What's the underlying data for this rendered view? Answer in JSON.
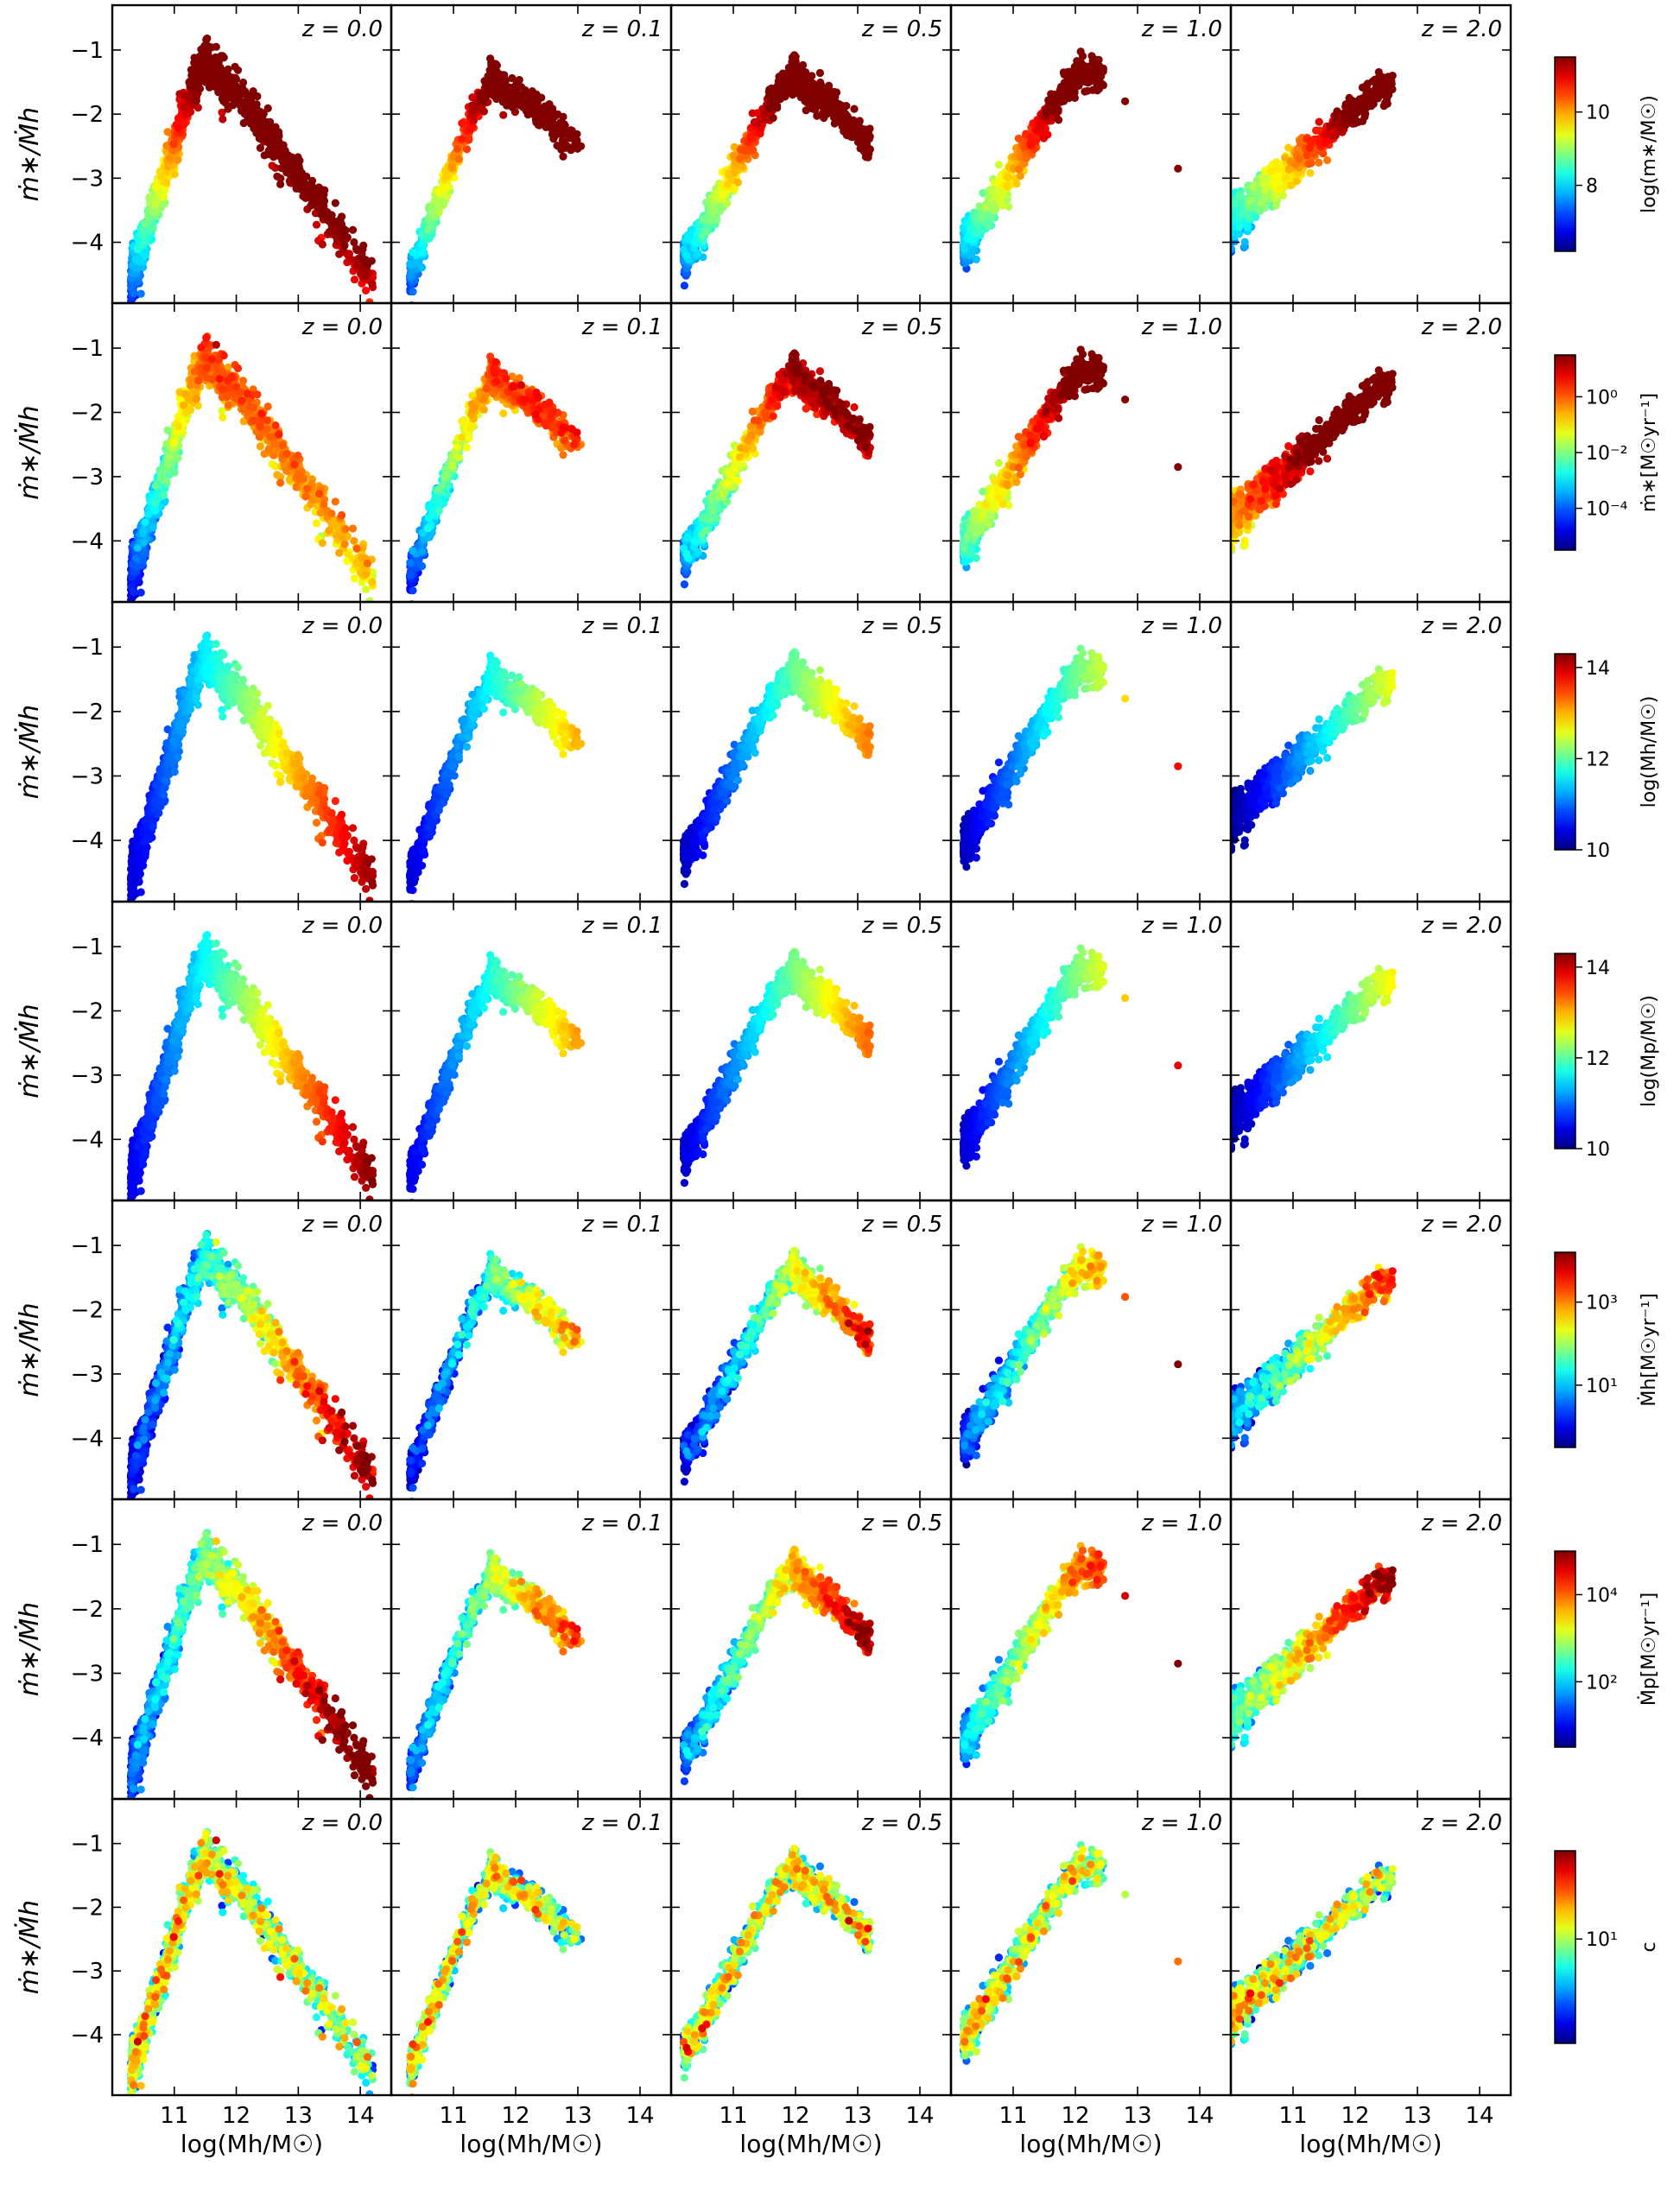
{
  "figure": {
    "ylabel": "ṁ∗/Ṁh",
    "xlabel": "log(Mh/M☉)",
    "columns": [
      "z = 0.0",
      "z = 0.1",
      "z = 0.5",
      "z = 1.0",
      "z = 2.0"
    ]
  },
  "chart_data": {
    "type": "scatter",
    "layout": "7 rows x 5 columns grid of scatter panels sharing axes, one colorbar per row",
    "xlim": [
      10.0,
      14.5
    ],
    "ylim": [
      -4.95,
      -0.3
    ],
    "xticks": [
      11,
      12,
      13,
      14
    ],
    "yticks": [
      -1,
      -2,
      -3,
      -4
    ],
    "xtick_labels": [
      "11",
      "12",
      "13",
      "14"
    ],
    "ytick_labels": [
      "−1",
      "−2",
      "−3",
      "−4"
    ],
    "xlabel": "log(Mh/M☉)",
    "ylabel": "ṁ∗/Ṁh",
    "grid": false,
    "colormap": "jet",
    "panel_columns": [
      {
        "label": "z = 0.0",
        "z": 0.0,
        "x_range": [
          10.3,
          14.3
        ],
        "peak": [
          11.5,
          -1.0
        ],
        "low_start": [
          10.3,
          -4.6
        ],
        "tail_end": [
          14.2,
          -4.6
        ],
        "n": 1300
      },
      {
        "label": "z = 0.1",
        "z": 0.1,
        "x_range": [
          10.3,
          13.1
        ],
        "peak": [
          11.6,
          -1.3
        ],
        "low_start": [
          10.3,
          -4.5
        ],
        "tail_end": [
          13.0,
          -2.5
        ],
        "n": 700
      },
      {
        "label": "z = 0.5",
        "z": 0.5,
        "x_range": [
          10.2,
          13.2
        ],
        "peak": [
          11.95,
          -1.25
        ],
        "low_start": [
          10.2,
          -4.3
        ],
        "tail_end": [
          13.2,
          -2.5
        ],
        "n": 900
      },
      {
        "label": "z = 1.0",
        "z": 1.0,
        "x_range": [
          10.2,
          13.7
        ],
        "peak": [
          12.1,
          -1.2
        ],
        "low_start": [
          10.2,
          -4.1
        ],
        "tail_end": [
          12.5,
          -1.3
        ],
        "n": 700
      },
      {
        "label": "z = 2.0",
        "z": 2.0,
        "x_range": [
          10.0,
          12.6
        ],
        "peak": [
          12.6,
          -1.4
        ],
        "low_start": [
          10.0,
          -3.7
        ],
        "tail_end": [
          12.6,
          -1.4
        ],
        "n": 700
      }
    ],
    "rows": [
      {
        "colorbar_label": "log(m∗/M☉)",
        "colorbar_ticks": [
          "10",
          "8"
        ],
        "colorbar_tick_values": [
          10,
          8
        ],
        "crange": [
          6.2,
          11.5
        ],
        "color_by": "stellar_mass"
      },
      {
        "colorbar_label": "ṁ∗[M☉yr⁻¹]",
        "colorbar_ticks": [
          "10⁰",
          "10⁻²",
          "10⁻⁴"
        ],
        "colorbar_tick_values": [
          0,
          -2,
          -4
        ],
        "crange": [
          -5.5,
          1.5
        ],
        "color_by": "sfr"
      },
      {
        "colorbar_label": "log(Mh/M☉)",
        "colorbar_ticks": [
          "14",
          "12",
          "10"
        ],
        "colorbar_tick_values": [
          14,
          12,
          10
        ],
        "crange": [
          10.0,
          14.3
        ],
        "color_by": "halo_mass"
      },
      {
        "colorbar_label": "log(Mp/M☉)",
        "colorbar_ticks": [
          "14",
          "12",
          "10"
        ],
        "colorbar_tick_values": [
          14,
          12,
          10
        ],
        "crange": [
          10.0,
          14.3
        ],
        "color_by": "peak_mass"
      },
      {
        "colorbar_label": "Ṁh[M☉yr⁻¹]",
        "colorbar_ticks": [
          "10³",
          "10¹"
        ],
        "colorbar_tick_values": [
          3,
          1
        ],
        "crange": [
          -0.5,
          4.2
        ],
        "color_by": "halo_accretion"
      },
      {
        "colorbar_label": "Ṁp[M☉yr⁻¹]",
        "colorbar_ticks": [
          "10⁴",
          "10²"
        ],
        "colorbar_tick_values": [
          4,
          2
        ],
        "crange": [
          0.5,
          5.0
        ],
        "color_by": "peak_accretion"
      },
      {
        "colorbar_label": "c",
        "colorbar_ticks": [
          "10¹"
        ],
        "colorbar_tick_values": [
          1
        ],
        "crange": [
          0.35,
          1.55
        ],
        "color_by": "concentration"
      }
    ]
  }
}
